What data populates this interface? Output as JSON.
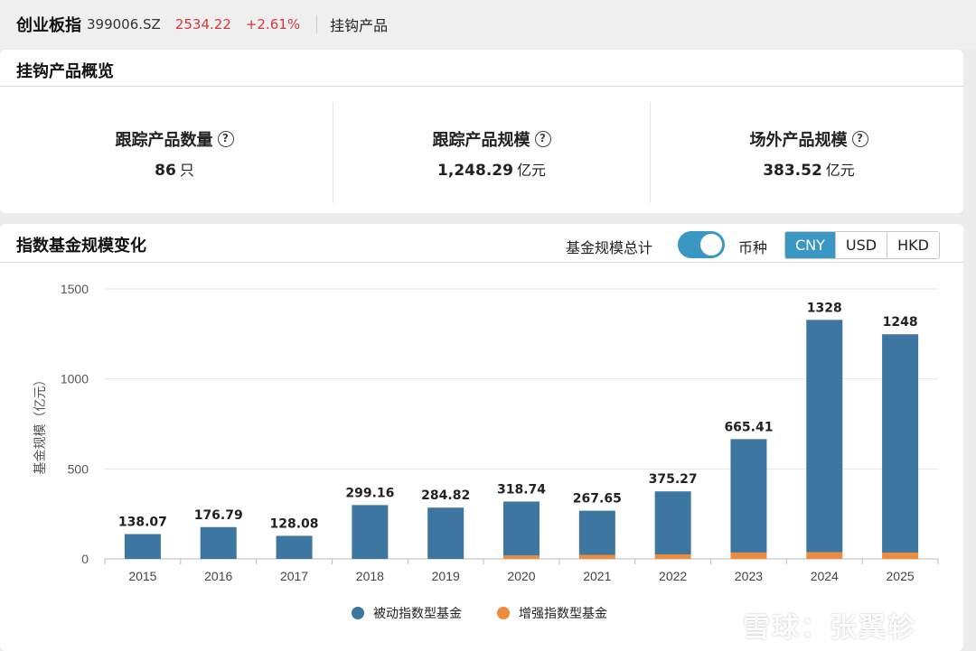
{
  "header": {
    "index_name": "创业板指",
    "index_code": "399006.SZ",
    "price": "2534.22",
    "change": "+2.61%",
    "tab": "挂钩产品"
  },
  "overview": {
    "title": "挂钩产品概览",
    "stats": [
      {
        "label": "跟踪产品数量",
        "value": "86",
        "unit": "只"
      },
      {
        "label": "跟踪产品规模",
        "value": "1,248.29",
        "unit": "亿元"
      },
      {
        "label": "场外产品规模",
        "value": "383.52",
        "unit": "亿元"
      }
    ]
  },
  "scale_section": {
    "title": "指数基金规模变化",
    "toggle_label": "基金规模总计",
    "toggle_on": true,
    "currency_label": "币种",
    "currencies": [
      "CNY",
      "USD",
      "HKD"
    ],
    "selected_currency": "CNY"
  },
  "chart_data": {
    "type": "bar",
    "stacked": true,
    "categories": [
      "2015",
      "2016",
      "2017",
      "2018",
      "2019",
      "2020",
      "2021",
      "2022",
      "2023",
      "2024",
      "2025"
    ],
    "series": [
      {
        "name": "被动指数型基金",
        "color": "#3d76a0",
        "values": [
          138.07,
          176.79,
          128.08,
          299.16,
          284.82,
          300,
          245,
          350,
          630,
          1291,
          1213
        ]
      },
      {
        "name": "增强指数型基金",
        "color": "#ec8c3c",
        "values": [
          0,
          0,
          0,
          0,
          0,
          18.74,
          22.65,
          25.27,
          35.41,
          37,
          35
        ]
      }
    ],
    "totals": [
      "138.07",
      "176.79",
      "128.08",
      "299.16",
      "284.82",
      "318.74",
      "267.65",
      "375.27",
      "665.41",
      "1328",
      "1248"
    ],
    "ylabel": "基金规模（亿元）",
    "yticks": [
      0,
      500,
      1000,
      1500
    ],
    "ylim": [
      0,
      1500
    ],
    "grid": true,
    "legend_position": "bottom"
  },
  "watermark": "雪球：张翼轸"
}
